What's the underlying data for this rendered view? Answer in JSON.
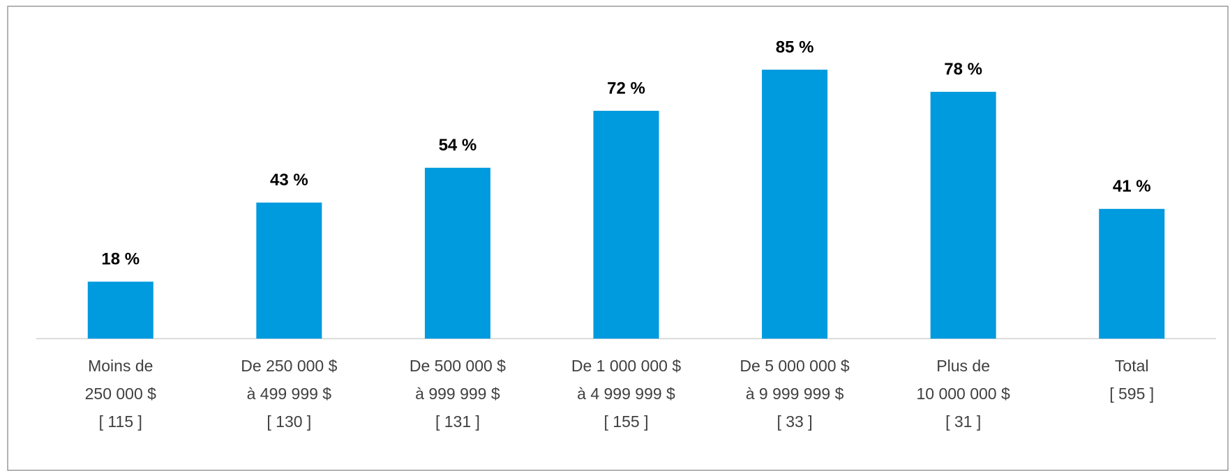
{
  "chart_data": {
    "type": "bar",
    "categories": [
      [
        "Moins de",
        "250 000 $",
        "[ 115 ]"
      ],
      [
        "De 250 000 $",
        "à 499 999 $",
        "[ 130 ]"
      ],
      [
        "De 500 000 $",
        "à 999 999 $",
        "[ 131 ]"
      ],
      [
        "De 1 000 000 $",
        "à 4 999 999 $",
        "[ 155 ]"
      ],
      [
        "De 5 000 000 $",
        "à 9 999 999 $",
        "[ 33 ]"
      ],
      [
        "Plus de",
        "10 000 000 $",
        "[ 31 ]"
      ],
      [
        "Total",
        "[ 595 ]"
      ]
    ],
    "values": [
      18,
      43,
      54,
      72,
      85,
      78,
      41
    ],
    "value_labels": [
      "18 %",
      "43 %",
      "54 %",
      "72 %",
      "85 %",
      "78 %",
      "41 %"
    ],
    "color": "#009ade"
  }
}
